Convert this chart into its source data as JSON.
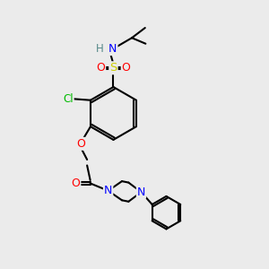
{
  "bg_color": "#ebebeb",
  "bond_color": "#000000",
  "bond_width": 1.5,
  "atom_colors": {
    "N": "#0000ff",
    "O": "#ff0000",
    "S": "#cccc00",
    "Cl": "#00bb00",
    "H": "#558888",
    "C": "#000000"
  },
  "font_size": 8.5,
  "title": ""
}
